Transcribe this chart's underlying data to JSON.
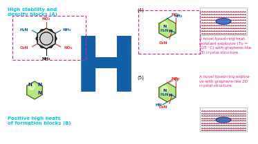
{
  "bg_color": "#ffffff",
  "left_top_text1": "High stability and",
  "left_top_text2": "density blocks (A)",
  "left_bot_text1": "Positive high heats",
  "left_bot_text2": "of formation blocks (B)",
  "right_top_text": "A novel fused-ring heat-\nresistant explosive (Tᴅ =\n325 °C) with graphene-like\n2D crystal structure.",
  "right_bot_text": "A novel fused-ring explosi-\nve with graphene-like 2D\ncrystal structure.",
  "label4": "(4)",
  "label5": "(5)",
  "cyan": "#00c8d7",
  "magenta": "#e8198a",
  "blue": "#1460a8",
  "red": "#e53030",
  "dark_red": "#c00000",
  "green_fill": "#b8e680",
  "green_fill2": "#d4f0a0",
  "yellow_fill": "#eeeecc",
  "dark_green_edge": "#507020",
  "black": "#111111",
  "navy": "#1a1a8c"
}
